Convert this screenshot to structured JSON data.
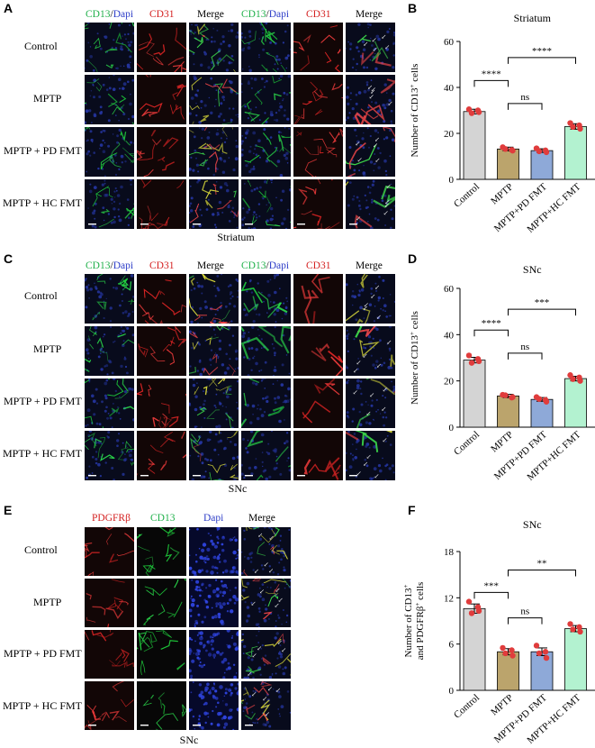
{
  "panels": {
    "A": {
      "letter": "A",
      "headers": [
        {
          "parts": [
            {
              "t": "CD13",
              "c": "#22b14c"
            },
            {
              "t": "/",
              "c": "#000000"
            },
            {
              "t": "Dapi",
              "c": "#2e3ec8"
            }
          ]
        },
        {
          "parts": [
            {
              "t": "CD31",
              "c": "#d42020"
            }
          ]
        },
        {
          "parts": [
            {
              "t": "Merge",
              "c": "#000000"
            }
          ]
        },
        {
          "parts": [
            {
              "t": "CD13",
              "c": "#22b14c"
            },
            {
              "t": "/",
              "c": "#000000"
            },
            {
              "t": "Dapi",
              "c": "#2e3ec8"
            }
          ]
        },
        {
          "parts": [
            {
              "t": "CD31",
              "c": "#d42020"
            }
          ]
        },
        {
          "parts": [
            {
              "t": "Merge",
              "c": "#000000"
            }
          ]
        }
      ],
      "rows": [
        "Control",
        "MPTP",
        "MPTP + PD FMT",
        "MPTP + HC FMT"
      ],
      "caption": "Striatum"
    },
    "C": {
      "letter": "C",
      "headers": [
        {
          "parts": [
            {
              "t": "CD13",
              "c": "#22b14c"
            },
            {
              "t": "/",
              "c": "#000000"
            },
            {
              "t": "Dapi",
              "c": "#2e3ec8"
            }
          ]
        },
        {
          "parts": [
            {
              "t": "CD31",
              "c": "#d42020"
            }
          ]
        },
        {
          "parts": [
            {
              "t": "Merge",
              "c": "#000000"
            }
          ]
        },
        {
          "parts": [
            {
              "t": "CD13",
              "c": "#22b14c"
            },
            {
              "t": "/",
              "c": "#000000"
            },
            {
              "t": "Dapi",
              "c": "#2e3ec8"
            }
          ]
        },
        {
          "parts": [
            {
              "t": "CD31",
              "c": "#d42020"
            }
          ]
        },
        {
          "parts": [
            {
              "t": "Merge",
              "c": "#000000"
            }
          ]
        }
      ],
      "rows": [
        "Control",
        "MPTP",
        "MPTP + PD FMT",
        "MPTP + HC FMT"
      ],
      "caption": "SNc"
    },
    "E": {
      "letter": "E",
      "headers": [
        {
          "parts": [
            {
              "t": "PDGFRβ",
              "c": "#d42020"
            }
          ]
        },
        {
          "parts": [
            {
              "t": "CD13",
              "c": "#22b14c"
            }
          ]
        },
        {
          "parts": [
            {
              "t": "Dapi",
              "c": "#2e3ec8"
            }
          ]
        },
        {
          "parts": [
            {
              "t": "Merge",
              "c": "#000000"
            }
          ]
        }
      ],
      "rows": [
        "Control",
        "MPTP",
        "MPTP + PD FMT",
        "MPTP + HC FMT"
      ],
      "caption": "SNc"
    }
  },
  "chart_data": [
    {
      "panel": "B",
      "type": "bar",
      "title": "Striatum",
      "ylabel_parts": [
        "Number of CD13",
        "+",
        " cells"
      ],
      "categories": [
        "Control",
        "MPTP",
        "MPTP+PD FMT",
        "MPTP+HC FMT"
      ],
      "values": [
        29.5,
        13.2,
        12.5,
        23.0
      ],
      "errors": [
        1.0,
        0.8,
        0.8,
        1.2
      ],
      "points": [
        [
          30.5,
          29.2,
          28.8,
          30.0
        ],
        [
          14.0,
          12.5,
          13.2,
          12.8
        ],
        [
          13.5,
          11.8,
          12.2,
          12.6
        ],
        [
          24.5,
          22.0,
          22.8,
          23.5
        ]
      ],
      "ylim": [
        0,
        60
      ],
      "yticks": [
        0,
        20,
        40,
        60
      ],
      "bar_colors": [
        "#d4d4d4",
        "#bba46c",
        "#8ea9d8",
        "#b3f2d0"
      ],
      "point_color": "#e03c3c",
      "comparisons": [
        {
          "from": 0,
          "to": 1,
          "label": "****",
          "y": 43
        },
        {
          "from": 1,
          "to": 2,
          "label": "ns",
          "y": 33
        },
        {
          "from": 1,
          "to": 3,
          "label": "****",
          "y": 53
        }
      ]
    },
    {
      "panel": "D",
      "type": "bar",
      "title": "SNc",
      "ylabel_parts": [
        "Number of CD13",
        "+",
        " cells"
      ],
      "categories": [
        "Control",
        "MPTP",
        "MPTP+PD FMT",
        "MPTP+HC FMT"
      ],
      "values": [
        29.0,
        13.5,
        12.0,
        21.0
      ],
      "errors": [
        1.2,
        0.7,
        0.8,
        1.0
      ],
      "points": [
        [
          31.0,
          28.5,
          27.8,
          29.5
        ],
        [
          14.0,
          13.0,
          13.8,
          12.8
        ],
        [
          13.0,
          11.0,
          12.2,
          11.8
        ],
        [
          22.5,
          20.0,
          20.8,
          21.5
        ]
      ],
      "ylim": [
        0,
        60
      ],
      "yticks": [
        0,
        20,
        40,
        60
      ],
      "bar_colors": [
        "#d4d4d4",
        "#bba46c",
        "#8ea9d8",
        "#b3f2d0"
      ],
      "point_color": "#e03c3c",
      "comparisons": [
        {
          "from": 0,
          "to": 1,
          "label": "****",
          "y": 42
        },
        {
          "from": 1,
          "to": 2,
          "label": "ns",
          "y": 32
        },
        {
          "from": 1,
          "to": 3,
          "label": "***",
          "y": 51
        }
      ]
    },
    {
      "panel": "F",
      "type": "bar",
      "title": "SNc",
      "ylabel_parts": [
        "Number of CD13",
        "+",
        " and PDGFRβ",
        "+",
        " cells"
      ],
      "categories": [
        "Control",
        "MPTP",
        "MPTP+PD FMT",
        "MPTP+HC FMT"
      ],
      "values": [
        10.6,
        5.0,
        5.0,
        8.0
      ],
      "errors": [
        0.6,
        0.4,
        0.5,
        0.4
      ],
      "points": [
        [
          11.5,
          10.3,
          10.0,
          10.8
        ],
        [
          5.5,
          4.5,
          4.8,
          5.2
        ],
        [
          5.8,
          4.2,
          4.8,
          5.0
        ],
        [
          8.6,
          7.6,
          7.9,
          8.2
        ]
      ],
      "ylim": [
        0,
        18
      ],
      "yticks": [
        0,
        6,
        12,
        18
      ],
      "bar_colors": [
        "#d4d4d4",
        "#bba46c",
        "#8ea9d8",
        "#b3f2d0"
      ],
      "point_color": "#e03c3c",
      "comparisons": [
        {
          "from": 0,
          "to": 1,
          "label": "***",
          "y": 12.7
        },
        {
          "from": 1,
          "to": 2,
          "label": "ns",
          "y": 9.4
        },
        {
          "from": 1,
          "to": 3,
          "label": "**",
          "y": 15.6
        }
      ]
    }
  ],
  "chart_letters": {
    "B": "B",
    "D": "D",
    "F": "F"
  }
}
